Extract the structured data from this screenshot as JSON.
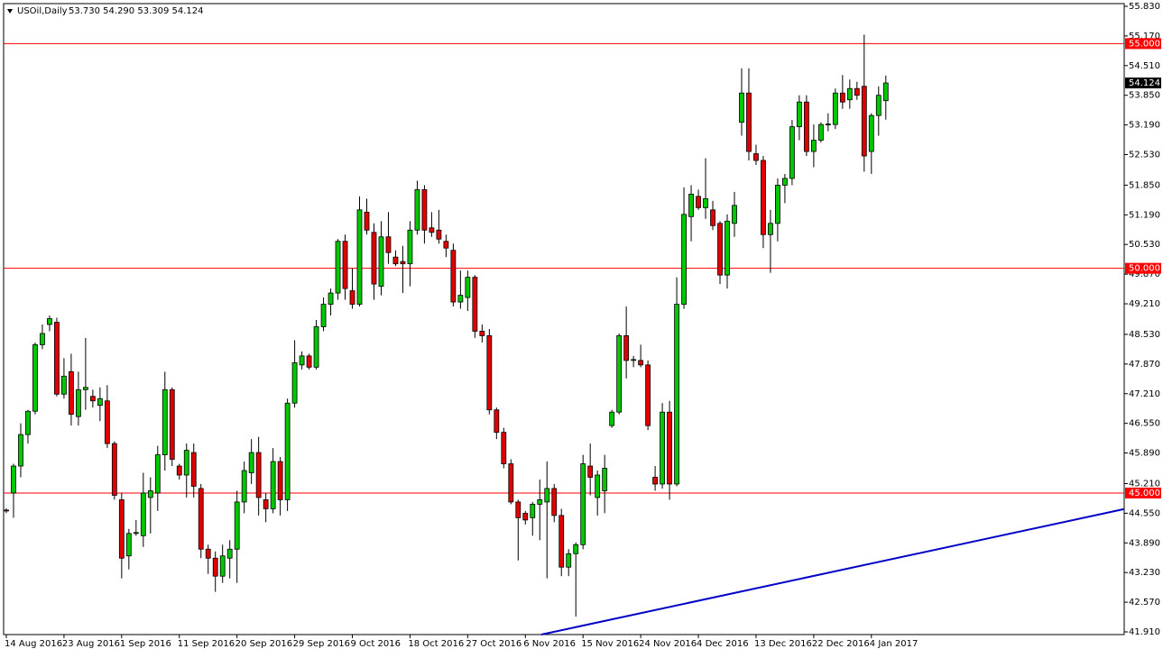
{
  "chart_data": {
    "type": "candlestick",
    "symbol": "USOil,Daily",
    "ohlc_text": "53.730 54.290 53.309 54.124",
    "categories": [
      "14 Aug 2016",
      null,
      null,
      null,
      null,
      null,
      null,
      null,
      "23 Aug 2016",
      null,
      null,
      null,
      null,
      null,
      null,
      null,
      "1 Sep 2016",
      null,
      null,
      null,
      null,
      null,
      null,
      null,
      "11 Sep 2016",
      null,
      null,
      null,
      null,
      null,
      null,
      null,
      "20 Sep 2016",
      null,
      null,
      null,
      null,
      null,
      null,
      null,
      "29 Sep 2016",
      null,
      null,
      null,
      null,
      null,
      null,
      null,
      "9 Oct 2016",
      null,
      null,
      null,
      null,
      null,
      null,
      null,
      "18 Oct 2016",
      null,
      null,
      null,
      null,
      null,
      null,
      null,
      "27 Oct 2016",
      null,
      null,
      null,
      null,
      null,
      null,
      null,
      "6 Nov 2016",
      null,
      null,
      null,
      null,
      null,
      null,
      null,
      "15 Nov 2016",
      null,
      null,
      null,
      null,
      null,
      null,
      null,
      "24 Nov 2016",
      null,
      null,
      null,
      null,
      null,
      null,
      null,
      "4 Dec 2016",
      null,
      null,
      null,
      null,
      null,
      null,
      null,
      "13 Dec 2016",
      null,
      null,
      null,
      null,
      null,
      null,
      null,
      "22 Dec 2016",
      null,
      null,
      null,
      null,
      null,
      null,
      null,
      "4 Jan 2017",
      null,
      null
    ],
    "open": [
      44.62,
      45.0,
      45.6,
      46.3,
      46.82,
      48.3,
      48.75,
      48.8,
      47.2,
      47.7,
      46.7,
      47.3,
      47.15,
      46.95,
      47.05,
      46.1,
      44.85,
      43.6,
      44.1,
      44.05,
      44.9,
      45.0,
      45.85,
      47.3,
      45.6,
      45.4,
      45.9,
      45.1,
      43.75,
      43.55,
      43.15,
      43.55,
      43.75,
      44.8,
      45.45,
      45.9,
      44.85,
      44.65,
      45.7,
      44.85,
      47.0,
      47.85,
      48.05,
      47.8,
      48.7,
      49.2,
      49.45,
      50.6,
      49.5,
      49.2,
      51.25,
      50.8,
      49.6,
      50.7,
      50.25,
      50.15,
      50.1,
      50.85,
      51.75,
      50.9,
      50.85,
      50.6,
      50.4,
      49.25,
      49.35,
      49.8,
      48.6,
      48.5,
      46.85,
      46.35,
      45.65,
      44.8,
      44.55,
      44.45,
      44.75,
      44.8,
      45.1,
      44.5,
      43.35,
      43.65,
      43.85,
      45.6,
      44.9,
      45.05,
      46.5,
      46.8,
      48.5,
      47.95,
      47.95,
      47.85,
      45.35,
      45.2,
      46.8,
      45.2,
      49.2,
      51.15,
      51.6,
      51.35,
      51.3,
      51.0,
      49.85,
      51.0,
      53.25,
      53.9,
      52.55,
      52.4,
      50.75,
      51.0,
      51.85,
      52.0,
      53.15,
      53.7,
      52.6,
      52.85,
      53.2,
      53.2,
      53.9,
      53.75,
      54.0,
      54.05,
      52.6,
      53.4,
      53.73
    ],
    "high": [
      44.66,
      45.65,
      46.55,
      46.85,
      48.35,
      48.75,
      48.95,
      48.9,
      48.0,
      48.1,
      47.7,
      48.45,
      47.3,
      47.35,
      47.4,
      46.15,
      45.0,
      44.2,
      44.4,
      45.45,
      45.35,
      46.05,
      47.7,
      47.35,
      45.65,
      46.1,
      46.1,
      45.2,
      43.85,
      43.7,
      43.85,
      43.95,
      45.05,
      45.7,
      46.2,
      46.25,
      45.0,
      46.0,
      45.8,
      47.1,
      48.4,
      48.15,
      48.1,
      48.85,
      49.35,
      49.55,
      50.65,
      50.75,
      50.0,
      51.6,
      51.55,
      51.0,
      51.05,
      51.25,
      50.4,
      50.5,
      51.05,
      51.95,
      51.85,
      51.25,
      51.3,
      50.75,
      50.55,
      49.95,
      49.95,
      49.85,
      48.75,
      48.65,
      46.9,
      46.45,
      45.75,
      44.85,
      44.6,
      44.8,
      45.3,
      45.7,
      45.2,
      44.65,
      43.75,
      43.9,
      45.85,
      46.1,
      45.5,
      45.85,
      46.85,
      48.55,
      49.15,
      48.05,
      48.3,
      47.95,
      45.6,
      47.0,
      47.05,
      49.8,
      51.8,
      51.85,
      51.75,
      52.45,
      51.5,
      51.05,
      51.2,
      51.7,
      54.45,
      54.45,
      52.75,
      52.5,
      51.3,
      52.0,
      52.1,
      53.3,
      53.85,
      53.85,
      53.2,
      53.25,
      53.45,
      54.0,
      54.3,
      54.2,
      54.15,
      55.2,
      53.45,
      54.05,
      54.29
    ],
    "low": [
      44.55,
      44.45,
      45.35,
      46.1,
      46.75,
      48.2,
      48.6,
      47.15,
      47.1,
      46.5,
      46.5,
      46.85,
      46.9,
      46.6,
      46.0,
      44.85,
      43.1,
      43.3,
      44.05,
      43.8,
      44.1,
      44.6,
      45.5,
      45.6,
      45.3,
      44.9,
      44.9,
      43.55,
      43.2,
      42.8,
      43.0,
      43.1,
      43.0,
      44.55,
      45.2,
      44.5,
      44.35,
      44.55,
      44.5,
      44.6,
      46.9,
      47.75,
      47.75,
      47.75,
      48.6,
      48.95,
      49.3,
      49.3,
      49.1,
      49.15,
      50.75,
      49.3,
      49.4,
      50.1,
      50.05,
      49.45,
      49.6,
      50.75,
      50.55,
      50.7,
      50.55,
      50.25,
      49.15,
      49.1,
      49.05,
      48.45,
      48.35,
      46.75,
      46.2,
      45.55,
      44.75,
      43.5,
      44.3,
      44.05,
      43.95,
      43.1,
      44.35,
      43.15,
      43.15,
      42.25,
      43.75,
      44.95,
      44.5,
      44.55,
      46.45,
      46.75,
      47.55,
      47.8,
      47.8,
      46.4,
      45.05,
      45.1,
      44.85,
      45.15,
      49.1,
      50.6,
      51.3,
      51.1,
      50.85,
      49.65,
      49.55,
      50.7,
      52.95,
      52.4,
      52.3,
      50.45,
      49.9,
      50.6,
      51.45,
      51.85,
      52.85,
      52.5,
      52.25,
      52.8,
      53.05,
      53.1,
      53.55,
      53.55,
      53.75,
      52.15,
      52.1,
      52.95,
      53.309
    ],
    "close": [
      44.6,
      45.6,
      46.3,
      46.82,
      48.3,
      48.55,
      48.88,
      47.2,
      47.6,
      46.75,
      47.3,
      47.35,
      47.05,
      47.1,
      46.1,
      44.95,
      43.55,
      44.1,
      44.12,
      45.0,
      45.05,
      45.85,
      47.3,
      45.75,
      45.4,
      45.95,
      45.15,
      43.75,
      43.55,
      43.15,
      43.6,
      43.75,
      44.8,
      45.5,
      45.9,
      44.9,
      44.65,
      45.7,
      44.85,
      47.0,
      47.9,
      48.05,
      47.8,
      48.7,
      49.2,
      49.45,
      50.6,
      49.55,
      49.2,
      51.3,
      50.85,
      49.65,
      50.7,
      50.35,
      50.1,
      50.1,
      50.85,
      51.75,
      50.85,
      50.8,
      50.65,
      50.45,
      49.25,
      49.4,
      49.8,
      48.6,
      48.5,
      46.85,
      46.35,
      45.65,
      44.8,
      44.45,
      44.4,
      44.75,
      44.85,
      45.1,
      44.5,
      43.35,
      43.65,
      43.85,
      45.65,
      45.35,
      45.4,
      45.55,
      46.8,
      48.5,
      47.95,
      47.97,
      47.85,
      46.5,
      45.2,
      46.8,
      45.2,
      49.2,
      51.2,
      51.65,
      51.35,
      51.55,
      50.95,
      49.85,
      51.05,
      51.4,
      53.9,
      52.6,
      52.4,
      50.75,
      51.0,
      51.85,
      52.0,
      53.15,
      53.7,
      52.6,
      52.85,
      53.2,
      53.21,
      53.9,
      53.7,
      54.0,
      53.85,
      52.5,
      53.4,
      53.85,
      54.124
    ],
    "up_color": "#00c800",
    "down_color": "#e00000",
    "wick_color": "#000000",
    "ylim": [
      41.85,
      55.89
    ],
    "yticks": [
      {
        "value": 55.83,
        "label": "55.830"
      },
      {
        "value": 55.17,
        "label": "55.170"
      },
      {
        "value": 54.51,
        "label": "54.510"
      },
      {
        "value": 53.85,
        "label": "53.850"
      },
      {
        "value": 53.19,
        "label": "53.190"
      },
      {
        "value": 52.53,
        "label": "52.530"
      },
      {
        "value": 51.85,
        "label": "51.850"
      },
      {
        "value": 51.19,
        "label": "51.190"
      },
      {
        "value": 50.53,
        "label": "50.530"
      },
      {
        "value": 49.87,
        "label": "49.870"
      },
      {
        "value": 49.21,
        "label": "49.210"
      },
      {
        "value": 48.53,
        "label": "48.530"
      },
      {
        "value": 47.87,
        "label": "47.870"
      },
      {
        "value": 47.21,
        "label": "47.210"
      },
      {
        "value": 46.55,
        "label": "46.550"
      },
      {
        "value": 45.89,
        "label": "45.890"
      },
      {
        "value": 45.21,
        "label": "45.210"
      },
      {
        "value": 44.55,
        "label": "44.550"
      },
      {
        "value": 43.89,
        "label": "43.890"
      },
      {
        "value": 43.23,
        "label": "43.230"
      },
      {
        "value": 42.57,
        "label": "42.570"
      },
      {
        "value": 41.91,
        "label": "41.910"
      }
    ],
    "hlines": [
      {
        "value": 55,
        "label": "55.000"
      },
      {
        "value": 50,
        "label": "50.000"
      },
      {
        "value": 45,
        "label": "45.000"
      }
    ],
    "hline_color": "#ff0000",
    "last_price": {
      "value": 54.124,
      "label": "54.124"
    },
    "trend_line": {
      "x": [
        74.2,
        155
      ],
      "values": [
        41.85,
        44.64
      ],
      "color": "#0000c8"
    }
  }
}
